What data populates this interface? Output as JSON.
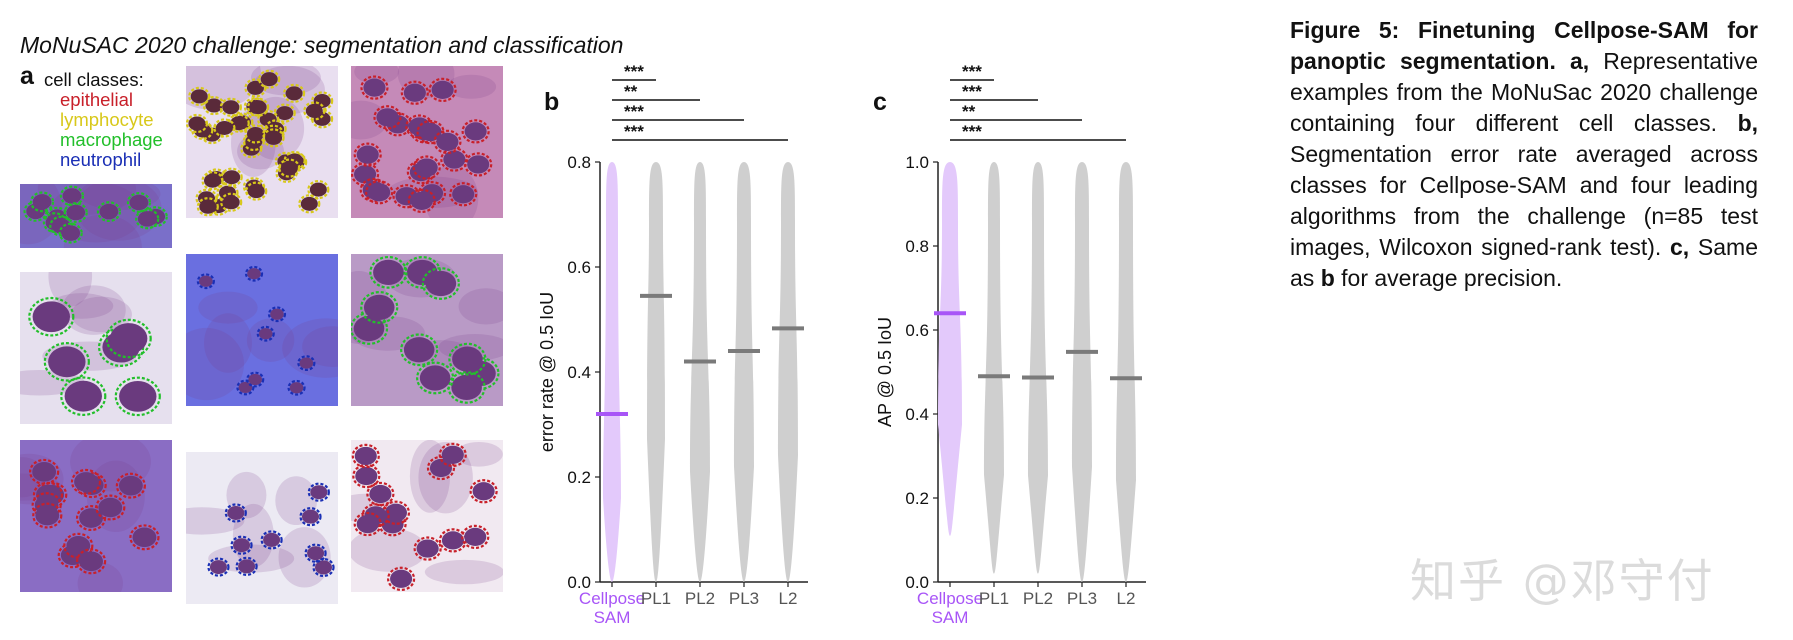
{
  "figure": {
    "title": "MoNuSAC 2020 challenge: segmentation and classification"
  },
  "panel_a": {
    "letter": "a",
    "legend_header": "cell classes:",
    "classes": [
      {
        "name": "epithelial",
        "color": "#c8202a"
      },
      {
        "name": "lymphocyte",
        "color": "#d8c81a"
      },
      {
        "name": "macrophage",
        "color": "#22bf2a"
      },
      {
        "name": "neutrophil",
        "color": "#1a2fb5"
      }
    ]
  },
  "colors": {
    "cellpose": "#a855f7",
    "cellpose_fill": "#e3c9fb",
    "baseline_fill": "#cfcfcf",
    "baseline_median": "#7a7a7a"
  },
  "chart_data": [
    {
      "panel": "b",
      "type": "violin",
      "ylabel": "error rate @ 0.5 IoU",
      "ylim": [
        0.0,
        0.8
      ],
      "yticks": [
        "0.0",
        "0.2",
        "0.4",
        "0.6",
        "0.8"
      ],
      "categories": [
        "Cellpose SAM",
        "PL1",
        "PL2",
        "PL3",
        "L2"
      ],
      "medians": [
        0.32,
        0.545,
        0.42,
        0.44,
        0.483
      ],
      "significance": [
        {
          "from": "Cellpose SAM",
          "to": "PL1",
          "label": "***"
        },
        {
          "from": "Cellpose SAM",
          "to": "PL2",
          "label": "**"
        },
        {
          "from": "Cellpose SAM",
          "to": "PL3",
          "label": "***"
        },
        {
          "from": "Cellpose SAM",
          "to": "L2",
          "label": "***"
        }
      ]
    },
    {
      "panel": "c",
      "type": "violin",
      "ylabel": "AP @ 0.5 IoU",
      "ylim": [
        0.0,
        1.0
      ],
      "yticks": [
        "0.0",
        "0.2",
        "0.4",
        "0.6",
        "0.8",
        "1.0"
      ],
      "categories": [
        "Cellpose SAM",
        "PL1",
        "PL2",
        "PL3",
        "L2"
      ],
      "medians": [
        0.64,
        0.49,
        0.487,
        0.548,
        0.485
      ],
      "significance": [
        {
          "from": "Cellpose SAM",
          "to": "PL1",
          "label": "***"
        },
        {
          "from": "Cellpose SAM",
          "to": "PL2",
          "label": "***"
        },
        {
          "from": "Cellpose SAM",
          "to": "PL3",
          "label": "**"
        },
        {
          "from": "Cellpose SAM",
          "to": "L2",
          "label": "***"
        }
      ]
    }
  ],
  "caption": {
    "title": "Figure 5:  Finetuning Cellpose-SAM for panoptic segmentation.",
    "a_label": "a,",
    "a_text": " Representative examples from the MoNuSac 2020 challenge containing four different cell classes.",
    "b_label": "b,",
    "b_text": " Segmentation error rate averaged across classes for Cellpose-SAM and four leading algorithms from the challenge (n=85 test images, Wilcoxon signed-rank test).",
    "c_label": "c,",
    "c_text": " Same as ",
    "c_ref": "b",
    "c_tail": " for average precision."
  },
  "watermark": "知乎 @邓守付"
}
